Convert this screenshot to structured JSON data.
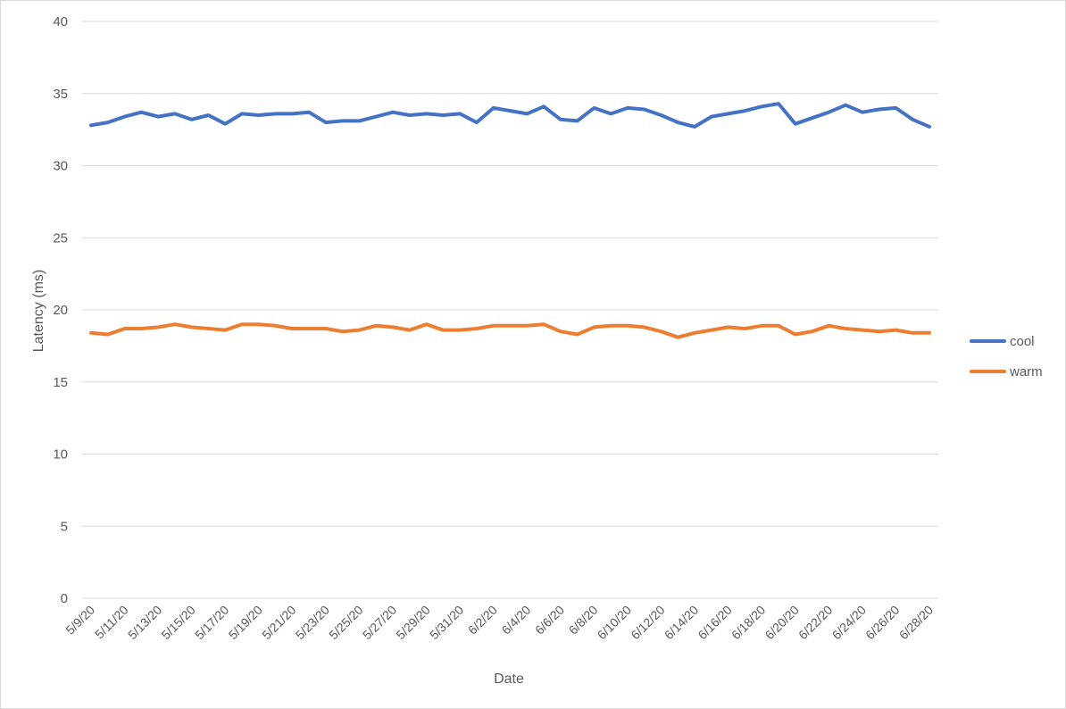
{
  "chart_data": {
    "type": "line",
    "title": "",
    "xlabel": "Date",
    "ylabel": "Latency (ms)",
    "ylim": [
      0,
      40
    ],
    "yticks": [
      0,
      5,
      10,
      15,
      20,
      25,
      30,
      35,
      40
    ],
    "grid": "horizontal",
    "legend_position": "right",
    "x": [
      "5/9/20",
      "5/10/20",
      "5/11/20",
      "5/12/20",
      "5/13/20",
      "5/14/20",
      "5/15/20",
      "5/16/20",
      "5/17/20",
      "5/18/20",
      "5/19/20",
      "5/20/20",
      "5/21/20",
      "5/22/20",
      "5/23/20",
      "5/24/20",
      "5/25/20",
      "5/26/20",
      "5/27/20",
      "5/28/20",
      "5/29/20",
      "5/30/20",
      "5/31/20",
      "6/1/20",
      "6/2/20",
      "6/3/20",
      "6/4/20",
      "6/5/20",
      "6/6/20",
      "6/7/20",
      "6/8/20",
      "6/9/20",
      "6/10/20",
      "6/11/20",
      "6/12/20",
      "6/13/20",
      "6/14/20",
      "6/15/20",
      "6/16/20",
      "6/17/20",
      "6/18/20",
      "6/19/20",
      "6/20/20",
      "6/21/20",
      "6/22/20",
      "6/23/20",
      "6/24/20",
      "6/25/20",
      "6/26/20",
      "6/27/20",
      "6/28/20"
    ],
    "xtick_labels": [
      "5/9/20",
      "5/11/20",
      "5/13/20",
      "5/15/20",
      "5/17/20",
      "5/19/20",
      "5/21/20",
      "5/23/20",
      "5/25/20",
      "5/27/20",
      "5/29/20",
      "5/31/20",
      "6/2/20",
      "6/4/20",
      "6/6/20",
      "6/8/20",
      "6/10/20",
      "6/12/20",
      "6/14/20",
      "6/16/20",
      "6/18/20",
      "6/20/20",
      "6/22/20",
      "6/24/20",
      "6/26/20",
      "6/28/20"
    ],
    "series": [
      {
        "name": "cool",
        "color": "#4472C4",
        "values": [
          32.8,
          33.0,
          33.4,
          33.7,
          33.4,
          33.6,
          33.2,
          33.5,
          32.9,
          33.6,
          33.5,
          33.6,
          33.6,
          33.7,
          33.0,
          33.1,
          33.1,
          33.4,
          33.7,
          33.5,
          33.6,
          33.5,
          33.6,
          33.0,
          34.0,
          33.8,
          33.6,
          34.1,
          33.2,
          33.1,
          34.0,
          33.6,
          34.0,
          33.9,
          33.5,
          33.0,
          32.7,
          33.4,
          33.6,
          33.8,
          34.1,
          34.3,
          32.9,
          33.3,
          33.7,
          34.2,
          33.7,
          33.9,
          34.0,
          33.2,
          32.7
        ]
      },
      {
        "name": "warm",
        "color": "#ED7D31",
        "values": [
          18.4,
          18.3,
          18.7,
          18.7,
          18.8,
          19.0,
          18.8,
          18.7,
          18.6,
          19.0,
          19.0,
          18.9,
          18.7,
          18.7,
          18.7,
          18.5,
          18.6,
          18.9,
          18.8,
          18.6,
          19.0,
          18.6,
          18.6,
          18.7,
          18.9,
          18.9,
          18.9,
          19.0,
          18.5,
          18.3,
          18.8,
          18.9,
          18.9,
          18.8,
          18.5,
          18.1,
          18.4,
          18.6,
          18.8,
          18.7,
          18.9,
          18.9,
          18.3,
          18.5,
          18.9,
          18.7,
          18.6,
          18.5,
          18.6,
          18.4,
          18.4
        ]
      }
    ]
  }
}
